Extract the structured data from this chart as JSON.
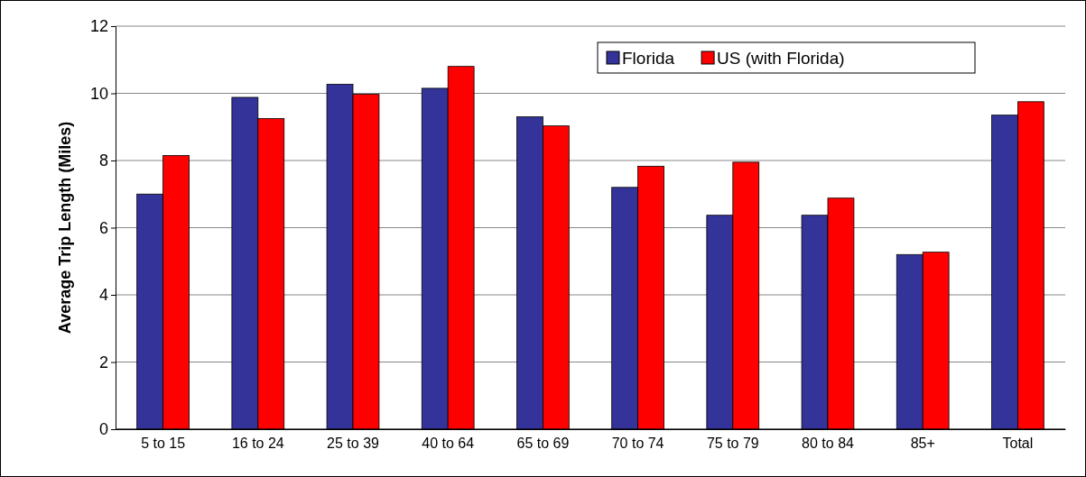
{
  "chart_data": {
    "type": "bar",
    "ylabel": "Average Trip Length (Miles)",
    "categories": [
      "5 to 15",
      "16 to 24",
      "25 to 39",
      "40 to 64",
      "65 to 69",
      "70 to 74",
      "75 to 79",
      "80 to 84",
      "85+",
      "Total"
    ],
    "series": [
      {
        "name": "Florida",
        "color": "#333399",
        "values": [
          7.0,
          9.88,
          10.27,
          10.15,
          9.3,
          7.2,
          6.37,
          6.37,
          5.2,
          9.35
        ]
      },
      {
        "name": "US (with Florida)",
        "color": "#ff0000",
        "values": [
          8.15,
          9.25,
          9.97,
          10.8,
          9.03,
          7.83,
          7.95,
          6.88,
          5.27,
          9.75
        ]
      }
    ],
    "ylim": [
      0,
      12
    ],
    "yticks": [
      0,
      2,
      4,
      6,
      8,
      10,
      12
    ],
    "grid": "y",
    "legend": "top right"
  }
}
